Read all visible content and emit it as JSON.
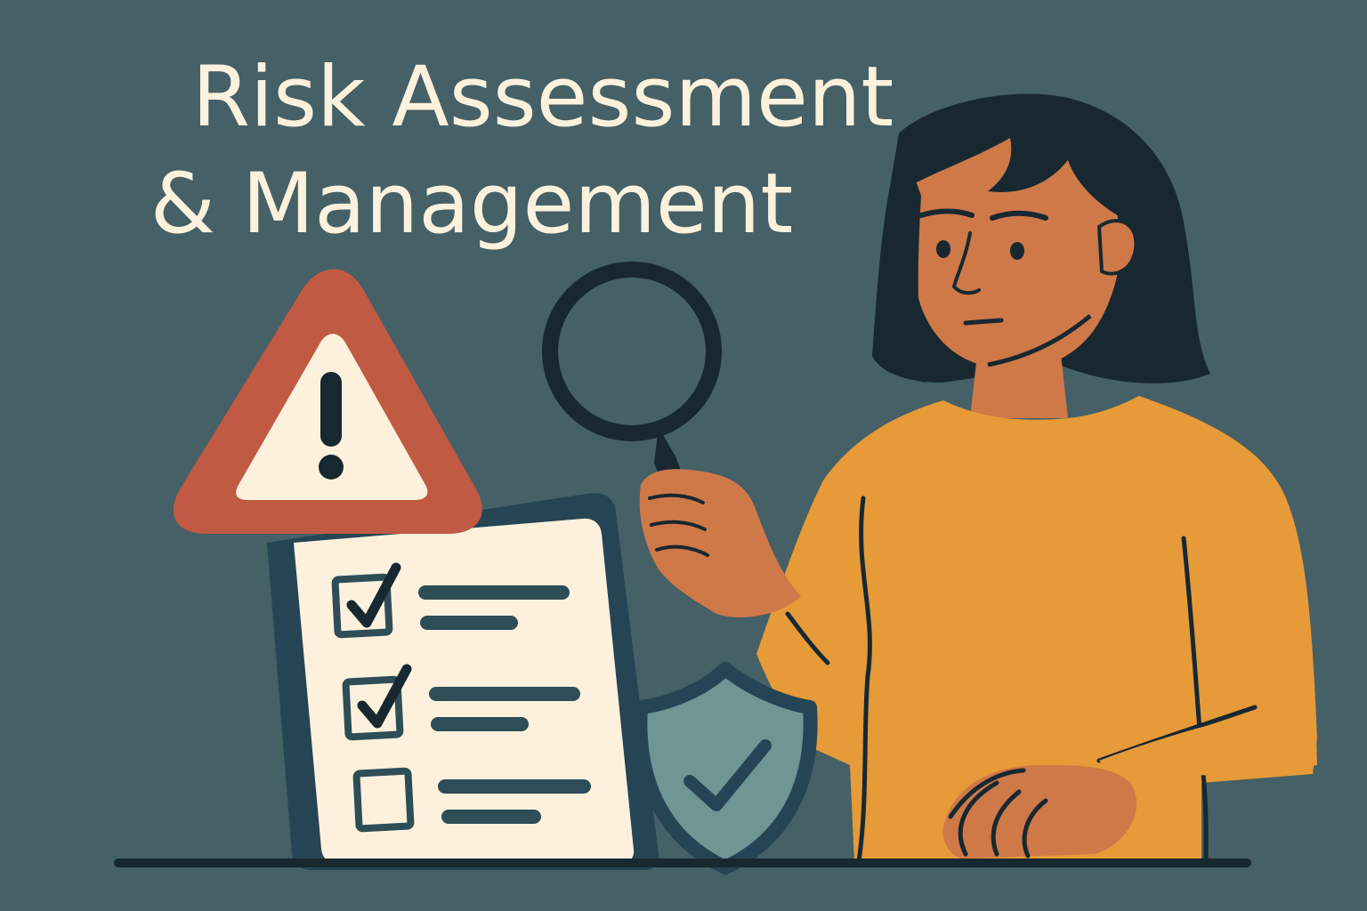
{
  "title": {
    "line1": "Risk Assessment",
    "line2": "& Management"
  },
  "colors": {
    "background": "#456066",
    "title_text": "#fbf1dc",
    "warning_red": "#c15a42",
    "sweater": "#e69a38",
    "skin": "#cf7848",
    "hair": "#182831",
    "outline": "#1e3640",
    "paper": "#fdf1dd",
    "shield": "#6f9595"
  },
  "illustration": {
    "icons": [
      "warning-icon",
      "magnifying-glass-icon",
      "shield-check-icon",
      "checklist-icon"
    ],
    "checklist_items": [
      {
        "checked": true
      },
      {
        "checked": true
      },
      {
        "checked": false
      }
    ]
  }
}
